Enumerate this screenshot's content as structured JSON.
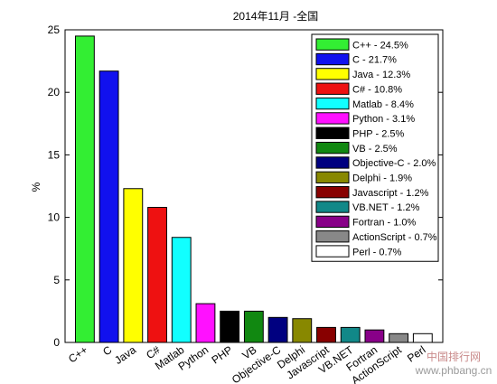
{
  "chart_data": {
    "type": "bar",
    "title": "2014年11月 -全国",
    "ylabel": "%",
    "xlabel": "",
    "ylim": [
      0,
      25
    ],
    "yticks": [
      0,
      5,
      10,
      15,
      20,
      25
    ],
    "grid": false,
    "legend_position": "top-right",
    "categories": [
      "C++",
      "C",
      "Java",
      "C#",
      "Matlab",
      "Python",
      "PHP",
      "VB",
      "Objective-C",
      "Delphi",
      "Javascript",
      "VB.NET",
      "Fortran",
      "ActionScript",
      "Perl"
    ],
    "values": [
      24.5,
      21.7,
      12.3,
      10.8,
      8.4,
      3.1,
      2.5,
      2.5,
      2.0,
      1.9,
      1.2,
      1.2,
      1.0,
      0.7,
      0.7
    ],
    "colors": [
      "#33ee33",
      "#1111ee",
      "#ffff00",
      "#ee1111",
      "#11ffff",
      "#ff11ff",
      "#000000",
      "#118811",
      "#000080",
      "#888800",
      "#880000",
      "#118888",
      "#880088",
      "#888888",
      "#ffffff"
    ],
    "legend": [
      "C++ - 24.5%",
      "C - 21.7%",
      "Java - 12.3%",
      "C# - 10.8%",
      "Matlab - 8.4%",
      "Python - 3.1%",
      "PHP - 2.5%",
      "VB - 2.5%",
      "Objective-C - 2.0%",
      "Delphi - 1.9%",
      "Javascript - 1.2%",
      "VB.NET - 1.2%",
      "Fortran - 1.0%",
      "ActionScript - 0.7%",
      "Perl - 0.7%"
    ]
  },
  "watermark": {
    "line1": "中国排行网",
    "line2": "www.phbang.cn"
  }
}
